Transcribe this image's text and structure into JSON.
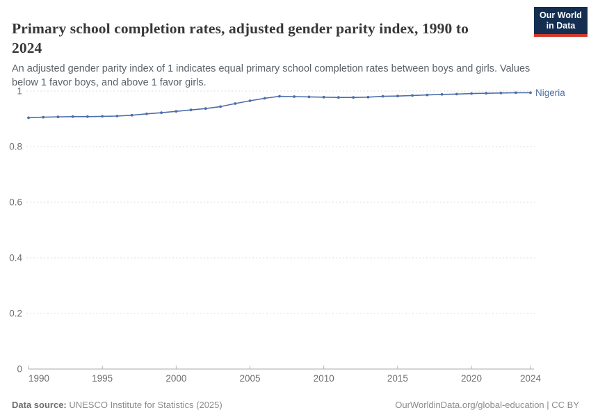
{
  "header": {
    "title": "Primary school completion rates, adjusted gender parity index, 1990 to 2024",
    "subtitle": "An adjusted gender parity index of 1 indicates equal primary school completion rates between boys and girls. Values below 1 favor boys, and above 1 favor girls.",
    "logo": {
      "line1": "Our World",
      "line2": "in Data",
      "bg_color": "#142e52",
      "bar_color": "#cf3a2e"
    }
  },
  "footer": {
    "source_label": "Data source:",
    "source_text": " UNESCO Institute for Statistics (2025)",
    "credit": "OurWorldinData.org/global-education | CC BY"
  },
  "chart_data": {
    "type": "line",
    "title": "Primary school completion rates, adjusted gender parity index, 1990 to 2024",
    "xlabel": "",
    "ylabel": "",
    "grid": "horizontal-dashed",
    "legend_position": "end-of-line",
    "ylim": [
      0,
      1.05
    ],
    "xlim": [
      1990,
      2024
    ],
    "y_ticks": [
      0,
      0.2,
      0.4,
      0.6,
      0.8,
      1
    ],
    "y_tick_labels": [
      "0",
      "0.2",
      "0.4",
      "0.6",
      "0.8",
      "1"
    ],
    "x_ticks": [
      1990,
      1995,
      2000,
      2005,
      2010,
      2015,
      2020,
      2024
    ],
    "x_tick_labels": [
      "1990",
      "1995",
      "2000",
      "2005",
      "2010",
      "2015",
      "2020",
      "2024"
    ],
    "years": [
      1990,
      1991,
      1992,
      1993,
      1994,
      1995,
      1996,
      1997,
      1998,
      1999,
      2000,
      2001,
      2002,
      2003,
      2004,
      2005,
      2006,
      2007,
      2008,
      2009,
      2010,
      2011,
      2012,
      2013,
      2014,
      2015,
      2016,
      2017,
      2018,
      2019,
      2020,
      2021,
      2022,
      2023,
      2024
    ],
    "series": [
      {
        "name": "Nigeria",
        "color": "#4c6ea8",
        "values": [
          0.904,
          0.906,
          0.907,
          0.908,
          0.908,
          0.909,
          0.91,
          0.913,
          0.918,
          0.922,
          0.927,
          0.932,
          0.937,
          0.944,
          0.955,
          0.965,
          0.974,
          0.981,
          0.98,
          0.979,
          0.978,
          0.977,
          0.977,
          0.978,
          0.981,
          0.982,
          0.984,
          0.986,
          0.988,
          0.989,
          0.991,
          0.992,
          0.993,
          0.994,
          0.994
        ]
      }
    ]
  }
}
